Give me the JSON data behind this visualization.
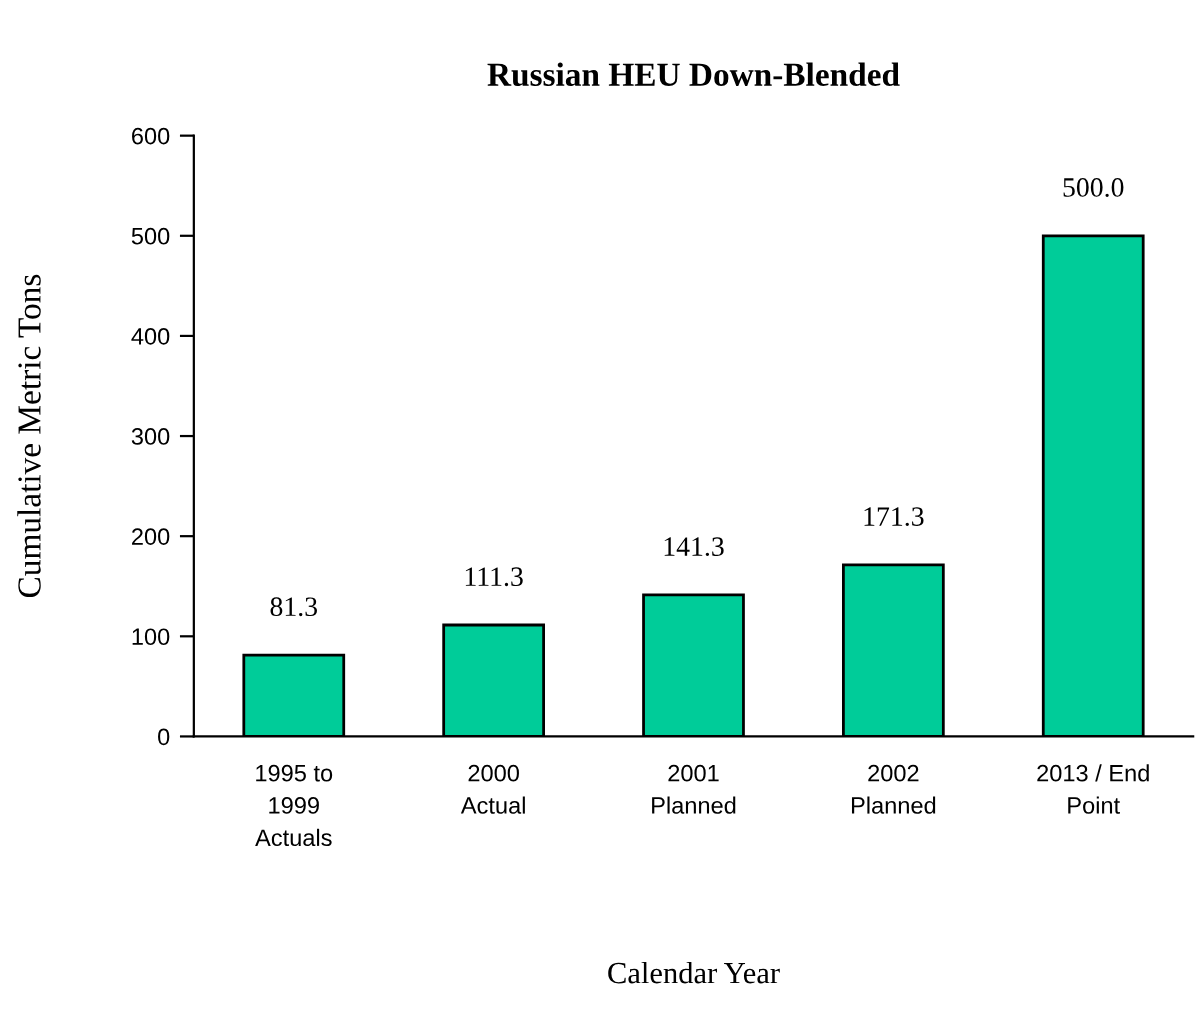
{
  "chart_data": {
    "type": "bar",
    "title": "Russian HEU Down-Blended",
    "xlabel": "Calendar Year",
    "ylabel": "Cumulative Metric Tons",
    "categories": [
      "1995 to\n1999\nActuals",
      "2000\nActual",
      "2001\nPlanned",
      "2002\nPlanned",
      "2013 / End\nPoint"
    ],
    "values": [
      81.3,
      111.3,
      141.3,
      171.3,
      500.0
    ],
    "value_labels": [
      "81.3",
      "111.3",
      "141.3",
      "171.3",
      "500.0"
    ],
    "color": "#00cc99",
    "ylim": [
      0,
      600
    ],
    "yticks": [
      0,
      100,
      200,
      300,
      400,
      500,
      600
    ],
    "grid": false,
    "legend": false
  }
}
